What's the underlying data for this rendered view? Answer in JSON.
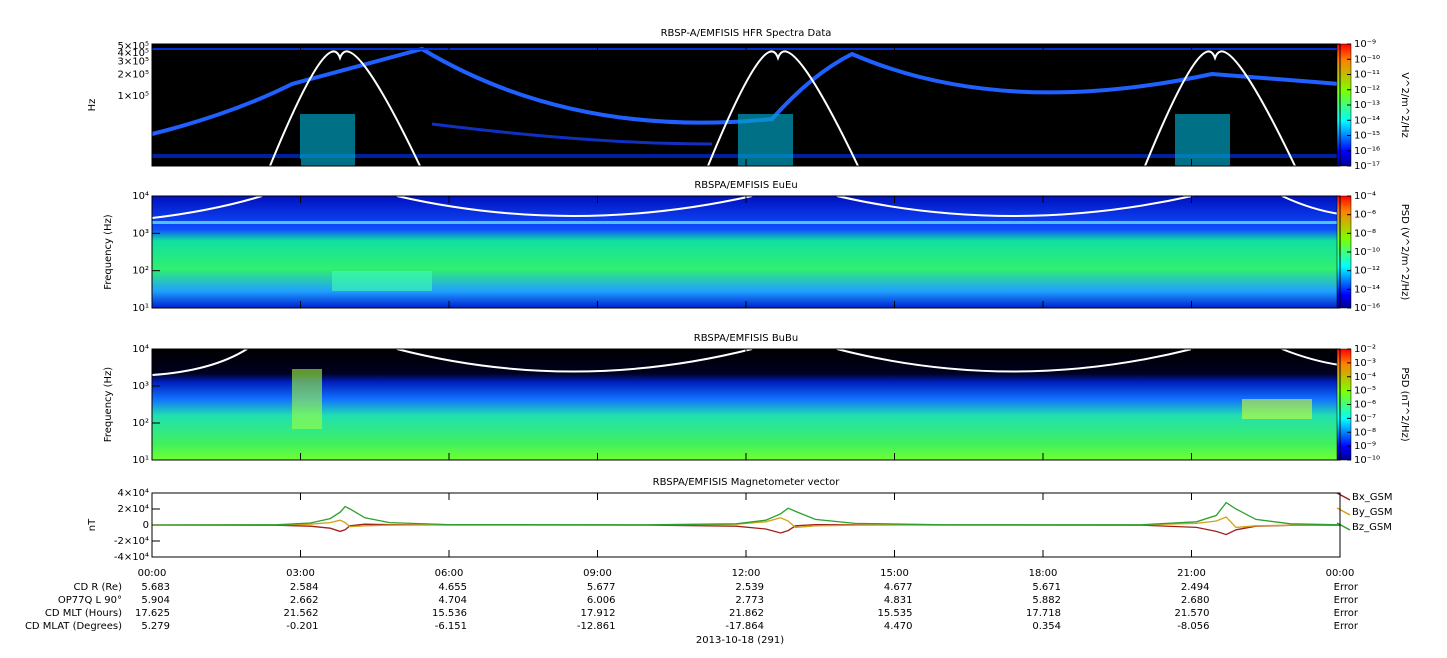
{
  "chart_data": [
    {
      "type": "spectrogram",
      "title": "RBSP-A/EMFISIS  HFR Spectra Data",
      "y_label": "Hz",
      "log_y": true,
      "ylim": [
        10500,
        530000
      ],
      "yticks": [
        {
          "value": 500000,
          "label": "5×10⁵"
        },
        {
          "value": 400000,
          "label": "4×10⁵"
        },
        {
          "value": 300000,
          "label": "3×10⁵"
        },
        {
          "value": 200000,
          "label": "2×10⁵"
        },
        {
          "value": 100000,
          "label": "1×10⁵"
        }
      ],
      "colorbar": {
        "label": "V^2/m^2/Hz",
        "zlim": [
          1e-17,
          1e-09
        ],
        "zticks": [
          {
            "value": 1e-09,
            "label": "10⁻⁹"
          },
          {
            "value": 1e-10,
            "label": "10⁻¹⁰"
          },
          {
            "value": 1e-11,
            "label": "10⁻¹¹"
          },
          {
            "value": 1e-12,
            "label": "10⁻¹²"
          },
          {
            "value": 1e-13,
            "label": "10⁻¹³"
          },
          {
            "value": 1e-14,
            "label": "10⁻¹⁴"
          },
          {
            "value": 1e-15,
            "label": "10⁻¹⁵"
          },
          {
            "value": 1e-16,
            "label": "10⁻¹⁶"
          },
          {
            "value": 1e-17,
            "label": "10⁻¹⁷"
          }
        ]
      }
    },
    {
      "type": "spectrogram",
      "title": "RBSPA/EMFISIS  EuEu",
      "y_label": "Frequency (Hz)",
      "log_y": true,
      "ylim": [
        10,
        10000
      ],
      "yticks": [
        {
          "value": 10,
          "label": "10¹"
        },
        {
          "value": 100,
          "label": "10²"
        },
        {
          "value": 1000,
          "label": "10³"
        },
        {
          "value": 10000,
          "label": "10⁴"
        }
      ],
      "colorbar": {
        "label": "PSD (V^2/m^2/Hz)",
        "zlim": [
          1e-16,
          0.0001
        ],
        "zticks": [
          {
            "value": 0.0001,
            "label": "10⁻⁴"
          },
          {
            "value": 1e-06,
            "label": "10⁻⁶"
          },
          {
            "value": 1e-08,
            "label": "10⁻⁸"
          },
          {
            "value": 1e-10,
            "label": "10⁻¹⁰"
          },
          {
            "value": 1e-12,
            "label": "10⁻¹²"
          },
          {
            "value": 1e-14,
            "label": "10⁻¹⁴"
          },
          {
            "value": 1e-16,
            "label": "10⁻¹⁶"
          }
        ]
      }
    },
    {
      "type": "spectrogram",
      "title": "RBSPA/EMFISIS  BuBu",
      "y_label": "Frequency (Hz)",
      "log_y": true,
      "ylim": [
        10,
        10000
      ],
      "yticks": [
        {
          "value": 10,
          "label": "10¹"
        },
        {
          "value": 100,
          "label": "10²"
        },
        {
          "value": 1000,
          "label": "10³"
        },
        {
          "value": 10000,
          "label": "10⁴"
        }
      ],
      "colorbar": {
        "label": "PSD (nT^2/Hz)",
        "zlim": [
          1e-10,
          0.01
        ],
        "zticks": [
          {
            "value": 0.01,
            "label": "10⁻²"
          },
          {
            "value": 0.001,
            "label": "10⁻³"
          },
          {
            "value": 0.0001,
            "label": "10⁻⁴"
          },
          {
            "value": 1e-05,
            "label": "10⁻⁵"
          },
          {
            "value": 1e-06,
            "label": "10⁻⁶"
          },
          {
            "value": 1e-07,
            "label": "10⁻⁷"
          },
          {
            "value": 1e-08,
            "label": "10⁻⁸"
          },
          {
            "value": 1e-09,
            "label": "10⁻⁹"
          },
          {
            "value": 1e-10,
            "label": "10⁻¹⁰"
          }
        ]
      }
    },
    {
      "type": "line",
      "title": "RBSPA/EMFISIS  Magnetometer vector",
      "y_label": "nT",
      "xlim": [
        0,
        24
      ],
      "xticks": [
        {
          "value": 0,
          "label": "00:00"
        },
        {
          "value": 3,
          "label": "03:00"
        },
        {
          "value": 6,
          "label": "06:00"
        },
        {
          "value": 9,
          "label": "09:00"
        },
        {
          "value": 12,
          "label": "12:00"
        },
        {
          "value": 15,
          "label": "15:00"
        },
        {
          "value": 18,
          "label": "18:00"
        },
        {
          "value": 21,
          "label": "21:00"
        },
        {
          "value": 24,
          "label": "00:00"
        }
      ],
      "ylim": [
        -40000,
        40000
      ],
      "yticks": [
        {
          "value": 40000,
          "label": "4×10⁴"
        },
        {
          "value": 20000,
          "label": "2×10⁴"
        },
        0,
        {
          "value": -20000,
          "label": "-2×10⁴"
        },
        {
          "value": -40000,
          "label": "-4×10⁴"
        }
      ],
      "x": [
        0,
        2.5,
        3.2,
        3.6,
        3.8,
        3.9,
        4.0,
        4.3,
        4.8,
        6,
        10,
        11.8,
        12.4,
        12.7,
        12.85,
        13.0,
        13.4,
        14.2,
        16,
        20,
        21.1,
        21.5,
        21.7,
        21.9,
        22.3,
        23,
        24
      ],
      "series": [
        {
          "name": "Bx_GSM",
          "color": "#a0201c",
          "values": [
            0,
            -200,
            -1500,
            -4000,
            -8000,
            -6000,
            -1000,
            1000,
            500,
            0,
            -100,
            -1500,
            -5000,
            -10000,
            -7000,
            -1000,
            500,
            200,
            0,
            -300,
            -3000,
            -8000,
            -12000,
            -6000,
            -1500,
            -500,
            -200
          ]
        },
        {
          "name": "By_GSM",
          "color": "#d4a017",
          "values": [
            0,
            100,
            1000,
            3000,
            6000,
            3000,
            -2000,
            -1000,
            -300,
            0,
            0,
            1000,
            4000,
            9000,
            5000,
            -3000,
            -1000,
            -200,
            0,
            100,
            2000,
            5000,
            10000,
            -3000,
            -1000,
            -200,
            0
          ]
        },
        {
          "name": "Bz_GSM",
          "color": "#2ca02c",
          "values": [
            0,
            300,
            2500,
            8000,
            16000,
            23000,
            20000,
            9000,
            3000,
            500,
            200,
            1500,
            6000,
            14000,
            21000,
            17000,
            7000,
            2000,
            300,
            400,
            4000,
            12000,
            28000,
            20000,
            7000,
            1500,
            300
          ]
        }
      ]
    }
  ],
  "ephemeris": {
    "rows": [
      {
        "label": "CD R (Re)",
        "values": [
          "5.683",
          "2.584",
          "4.655",
          "5.677",
          "2.539",
          "4.677",
          "5.671",
          "2.494",
          "Error"
        ]
      },
      {
        "label": "OP77Q L 90°",
        "values": [
          "5.904",
          "2.662",
          "4.704",
          "6.006",
          "2.773",
          "4.831",
          "5.882",
          "2.680",
          "Error"
        ]
      },
      {
        "label": "CD MLT (Hours)",
        "values": [
          "17.625",
          "21.562",
          "15.536",
          "17.912",
          "21.862",
          "15.535",
          "17.718",
          "21.570",
          "Error"
        ]
      },
      {
        "label": "CD MLAT (Degrees)",
        "values": [
          "5.279",
          "-0.201",
          "-6.151",
          "-12.861",
          "-17.864",
          "4.470",
          "0.354",
          "-8.056",
          "Error"
        ]
      }
    ],
    "date": "2013-10-18 (291)"
  }
}
